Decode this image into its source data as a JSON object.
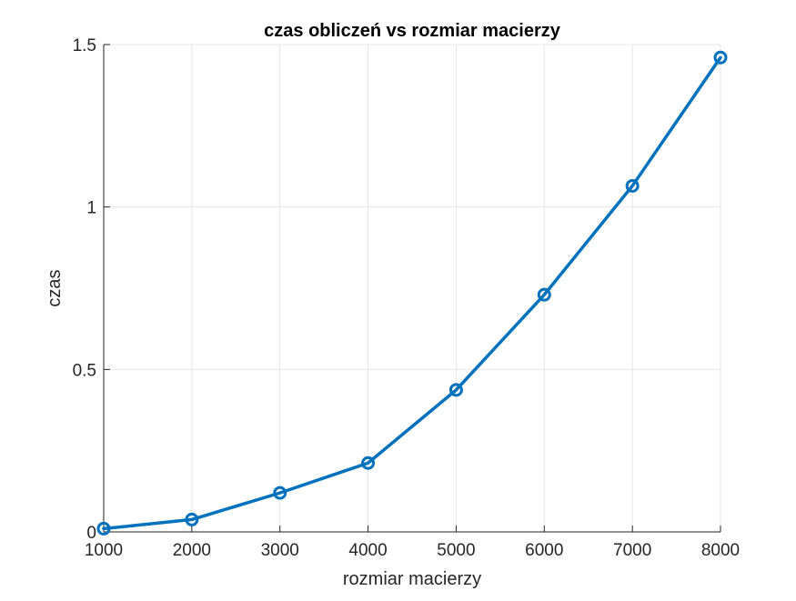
{
  "chart_data": {
    "type": "line",
    "title": "czas obliczeń vs rozmiar macierzy",
    "xlabel": "rozmiar macierzy",
    "ylabel": "czas",
    "xlim": [
      1000,
      8000
    ],
    "ylim": [
      0,
      1.5
    ],
    "grid": true,
    "x_ticks": [
      1000,
      2000,
      3000,
      4000,
      5000,
      6000,
      7000,
      8000
    ],
    "x_tick_labels": [
      "1000",
      "2000",
      "3000",
      "4000",
      "5000",
      "6000",
      "7000",
      "8000"
    ],
    "y_ticks": [
      0,
      0.5,
      1,
      1.5
    ],
    "y_tick_labels": [
      "0",
      "0.5",
      "1",
      "1.5"
    ],
    "x": [
      1000,
      2000,
      3000,
      4000,
      5000,
      6000,
      7000,
      8000
    ],
    "series": [
      {
        "values": [
          0.01,
          0.038,
          0.12,
          0.212,
          0.437,
          0.73,
          1.065,
          1.46
        ],
        "color": "#0072BD",
        "marker": "circle"
      }
    ]
  },
  "colors": {
    "axis": "#262626",
    "grid": "#e6e6e6",
    "background": "#ffffff"
  }
}
